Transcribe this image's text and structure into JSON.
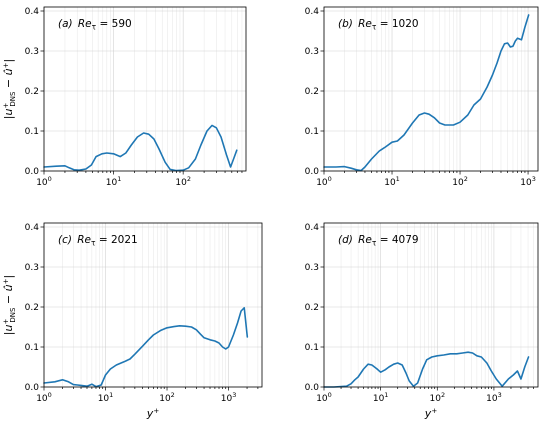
{
  "chart_data": [
    {
      "type": "line",
      "panel": "(a)",
      "label": "Re_τ = 590",
      "xscale": "log",
      "xlim": [
        1,
        800
      ],
      "ylim": [
        0,
        0.41
      ],
      "xticks": [
        "10^0",
        "10^1",
        "10^2"
      ],
      "yticks": [
        "0.0",
        "0.1",
        "0.2",
        "0.3",
        "0.4"
      ],
      "xlabel": "",
      "ylabel": "|u⁺_DNS − û⁺|",
      "grid": true,
      "color": "#1f77b4",
      "x": [
        1,
        1.5,
        2.0,
        2.3,
        2.7,
        3.2,
        4.0,
        4.8,
        5.6,
        6.8,
        8.0,
        10,
        12.5,
        15,
        18,
        22,
        27,
        32,
        38,
        45,
        55,
        65,
        80,
        100,
        120,
        150,
        180,
        220,
        260,
        300,
        350,
        420,
        480,
        530,
        590
      ],
      "y": [
        0.01,
        0.012,
        0.013,
        0.008,
        0.003,
        0.002,
        0.005,
        0.015,
        0.036,
        0.043,
        0.045,
        0.043,
        0.036,
        0.045,
        0.065,
        0.085,
        0.095,
        0.092,
        0.08,
        0.055,
        0.022,
        0.004,
        0.001,
        0.002,
        0.008,
        0.03,
        0.065,
        0.1,
        0.114,
        0.108,
        0.085,
        0.04,
        0.01,
        0.03,
        0.052
      ]
    },
    {
      "type": "line",
      "panel": "(b)",
      "label": "Re_τ = 1020",
      "xscale": "log",
      "xlim": [
        1,
        1400
      ],
      "ylim": [
        0,
        0.41
      ],
      "xticks": [
        "10^0",
        "10^1",
        "10^2",
        "10^3"
      ],
      "yticks": [
        "0.0",
        "0.1",
        "0.2",
        "0.3",
        "0.4"
      ],
      "xlabel": "",
      "ylabel": "",
      "grid": true,
      "color": "#1f77b4",
      "x": [
        1,
        1.5,
        2.0,
        2.5,
        3.0,
        3.5,
        4.0,
        5.0,
        6.5,
        8,
        10,
        12,
        15,
        20,
        25,
        30,
        35,
        42,
        50,
        60,
        80,
        100,
        130,
        160,
        200,
        250,
        300,
        350,
        400,
        450,
        500,
        550,
        600,
        650,
        700,
        800,
        900,
        1020
      ],
      "y": [
        0.01,
        0.01,
        0.011,
        0.007,
        0.003,
        0.001,
        0.01,
        0.03,
        0.05,
        0.06,
        0.072,
        0.075,
        0.09,
        0.12,
        0.14,
        0.145,
        0.142,
        0.133,
        0.12,
        0.115,
        0.115,
        0.122,
        0.14,
        0.165,
        0.18,
        0.21,
        0.24,
        0.27,
        0.3,
        0.318,
        0.32,
        0.31,
        0.312,
        0.325,
        0.332,
        0.328,
        0.36,
        0.39
      ]
    },
    {
      "type": "line",
      "panel": "(c)",
      "label": "Re_τ = 2021",
      "xscale": "log",
      "xlim": [
        1,
        3500
      ],
      "ylim": [
        0,
        0.41
      ],
      "xticks": [
        "10^0",
        "10^1",
        "10^2",
        "10^3"
      ],
      "yticks": [
        "0.0",
        "0.1",
        "0.2",
        "0.3",
        "0.4"
      ],
      "xlabel": "y⁺",
      "ylabel": "|u⁺_DNS − û⁺|",
      "grid": true,
      "color": "#1f77b4",
      "x": [
        1,
        1.5,
        2.0,
        2.5,
        3.0,
        3.5,
        4.0,
        5.0,
        6.0,
        7.0,
        8.5,
        10,
        12,
        15,
        20,
        25,
        30,
        40,
        50,
        60,
        80,
        100,
        130,
        160,
        200,
        250,
        300,
        350,
        400,
        500,
        600,
        700,
        800,
        900,
        1000,
        1200,
        1400,
        1600,
        1800,
        2021
      ],
      "y": [
        0.01,
        0.013,
        0.018,
        0.013,
        0.006,
        0.005,
        0.004,
        0.002,
        0.007,
        0.001,
        0.005,
        0.03,
        0.045,
        0.055,
        0.063,
        0.07,
        0.082,
        0.102,
        0.118,
        0.13,
        0.142,
        0.148,
        0.151,
        0.153,
        0.152,
        0.15,
        0.143,
        0.132,
        0.123,
        0.118,
        0.115,
        0.11,
        0.1,
        0.095,
        0.1,
        0.13,
        0.16,
        0.19,
        0.198,
        0.125
      ]
    },
    {
      "type": "line",
      "panel": "(d)",
      "label": "Re_τ = 4079",
      "xscale": "log",
      "xlim": [
        1,
        6000
      ],
      "ylim": [
        0,
        0.41
      ],
      "xticks": [
        "10^0",
        "10^1",
        "10^2",
        "10^3"
      ],
      "yticks": [
        "0.0",
        "0.1",
        "0.2",
        "0.3",
        "0.4"
      ],
      "xlabel": "y⁺",
      "ylabel": "",
      "grid": true,
      "color": "#1f77b4",
      "x": [
        1,
        1.5,
        2.0,
        2.5,
        3.0,
        3.5,
        4.0,
        5.0,
        6.0,
        7.0,
        8.5,
        10,
        12,
        14,
        17,
        20,
        24,
        28,
        32,
        38,
        45,
        55,
        65,
        80,
        100,
        130,
        170,
        220,
        280,
        350,
        420,
        500,
        600,
        750,
        900,
        1100,
        1400,
        1800,
        2200,
        2600,
        3000,
        3500,
        4079
      ],
      "y": [
        0.0,
        0.0,
        0.001,
        0.002,
        0.008,
        0.018,
        0.025,
        0.045,
        0.057,
        0.055,
        0.046,
        0.037,
        0.043,
        0.05,
        0.057,
        0.06,
        0.055,
        0.035,
        0.015,
        0.002,
        0.01,
        0.045,
        0.068,
        0.075,
        0.078,
        0.08,
        0.083,
        0.083,
        0.085,
        0.087,
        0.085,
        0.078,
        0.075,
        0.06,
        0.04,
        0.02,
        0.002,
        0.02,
        0.03,
        0.04,
        0.02,
        0.05,
        0.075
      ]
    }
  ]
}
